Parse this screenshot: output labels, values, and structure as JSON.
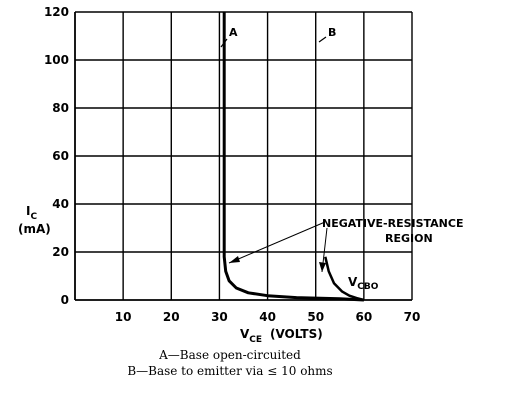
{
  "chart_data": {
    "type": "line",
    "x_axis": {
      "label_main": "V",
      "label_sub": "CE",
      "label_units": "(VOLTS)",
      "range": [
        0,
        70
      ],
      "ticks": [
        10,
        20,
        30,
        40,
        50,
        60,
        70
      ],
      "tick_labels": [
        "10",
        "20",
        "30",
        "40",
        "50",
        "60",
        "70"
      ]
    },
    "y_axis": {
      "label_main": "I",
      "label_sub": "C",
      "label_units": "(mA)",
      "range": [
        0,
        120
      ],
      "ticks": [
        0,
        20,
        40,
        60,
        80,
        100,
        120
      ],
      "tick_labels": [
        "0",
        "20",
        "40",
        "60",
        "80",
        "100",
        "120"
      ]
    },
    "grid": true,
    "series": [
      {
        "name": "A",
        "points": [
          [
            31,
            120
          ],
          [
            31,
            18
          ],
          [
            31.3,
            12
          ],
          [
            32,
            8
          ],
          [
            33.5,
            5
          ],
          [
            36,
            3
          ],
          [
            40,
            1.8
          ],
          [
            46,
            1
          ],
          [
            55,
            0.5
          ],
          [
            60,
            0
          ]
        ]
      },
      {
        "name": "B",
        "points": [
          [
            52,
            18
          ],
          [
            52.7,
            12
          ],
          [
            53.8,
            7
          ],
          [
            55.5,
            3.5
          ],
          [
            57,
            1.8
          ],
          [
            58.5,
            0.8
          ],
          [
            60,
            0
          ]
        ]
      }
    ],
    "annotations": {
      "a_label": "A",
      "b_label": "B",
      "neg_res_line1": "NEGATIVE-RESISTANCE",
      "neg_res_line2": "REGION",
      "vcbo_main": "V",
      "vcbo_sub": "CBO"
    }
  },
  "captions": {
    "a": "A—Base open-circuited",
    "b": "B—Base to emitter via ≤ 10 ohms"
  }
}
